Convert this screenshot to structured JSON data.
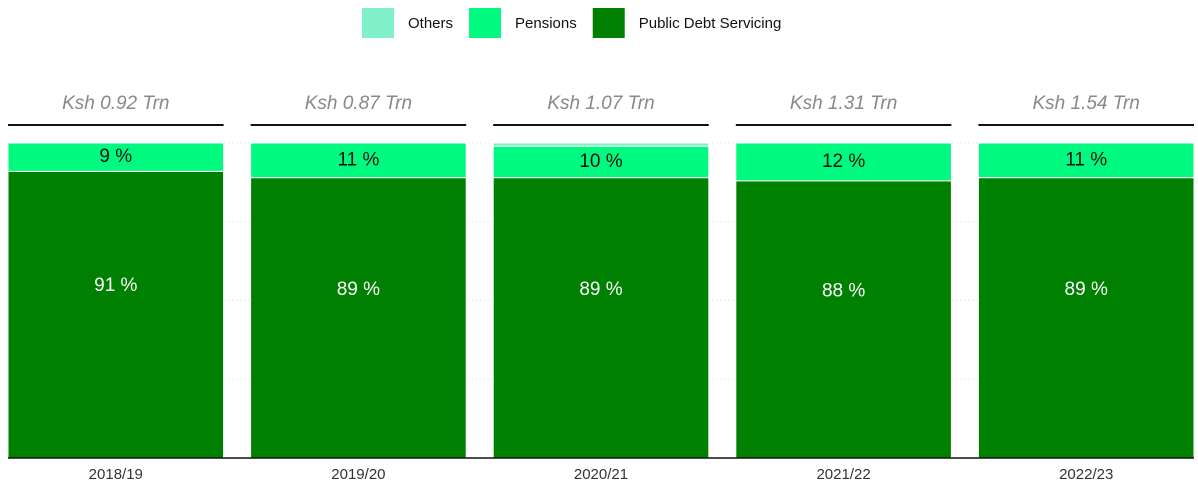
{
  "chart_data": {
    "type": "stacked_bar",
    "categories": [
      "2018/19",
      "2019/20",
      "2020/21",
      "2021/22",
      "2022/23"
    ],
    "annotations": [
      "Ksh 0.92 Trn",
      "Ksh 0.87 Trn",
      "Ksh 1.07 Trn",
      "Ksh 1.31 Trn",
      "Ksh 1.54 Trn"
    ],
    "series": [
      {
        "name": "Public Debt Servicing",
        "color": "#008000",
        "values": [
          91,
          89,
          89,
          88,
          89
        ],
        "value_labels": [
          "91 %",
          "89 %",
          "89 %",
          "88 %",
          "89 %"
        ]
      },
      {
        "name": "Pensions",
        "color": "#00fa80",
        "values": [
          9,
          11,
          10,
          12,
          11
        ],
        "value_labels": [
          "9 %",
          "11 %",
          "10 %",
          "12 %",
          "11 %"
        ]
      },
      {
        "name": "Others",
        "color": "#80f0c8",
        "values": [
          0,
          0,
          1,
          0,
          0
        ]
      }
    ],
    "ylim": [
      0,
      100
    ],
    "yticks": [
      0,
      25,
      50,
      75,
      100
    ],
    "grid": true
  }
}
